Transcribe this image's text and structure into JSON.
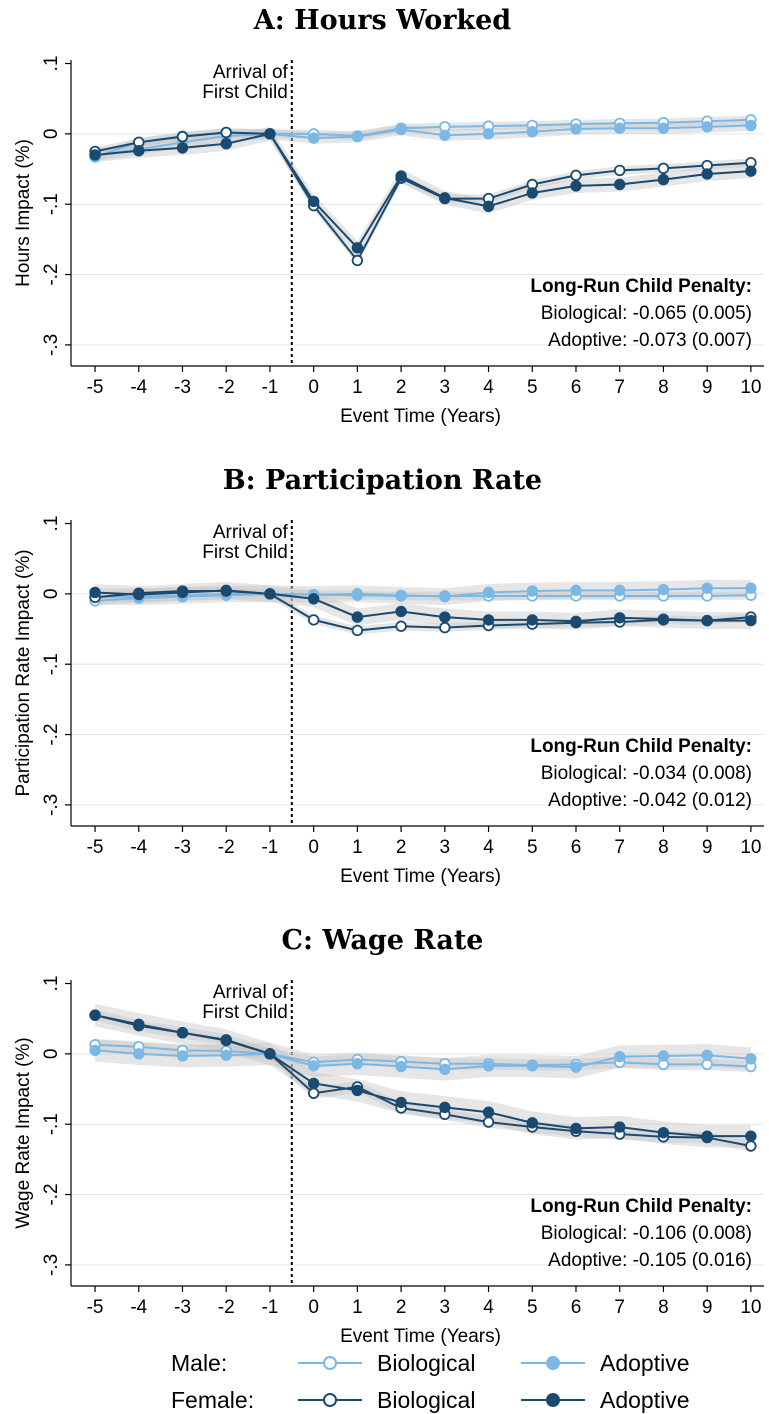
{
  "chart_data": [
    {
      "type": "line",
      "title": "A: Hours Worked",
      "xlabel": "Event Time (Years)",
      "ylabel": "Hours Impact (%)",
      "x": [
        -5,
        -4,
        -3,
        -2,
        -1,
        0,
        1,
        2,
        3,
        4,
        5,
        6,
        7,
        8,
        9,
        10
      ],
      "x_ticks": [
        "-5",
        "-4",
        "-3",
        "-2",
        "-1",
        "0",
        "1",
        "2",
        "3",
        "4",
        "5",
        "6",
        "7",
        "8",
        "9",
        "10"
      ],
      "ylim": [
        -0.3,
        0.1
      ],
      "y_ticks": [
        0.1,
        0,
        -0.1,
        -0.2,
        -0.3
      ],
      "y_tick_labels": [
        ".1",
        "0",
        "-.1",
        "-.2",
        "-.3"
      ],
      "grid": true,
      "vline": {
        "x": -0.5,
        "label_line1": "Arrival of",
        "label_line2": "First Child"
      },
      "penalty": {
        "title": "Long-Run Child Penalty:",
        "biological": "Biological: -0.065 (0.005)",
        "adoptive": "Adoptive: -0.073 (0.007)"
      },
      "series": [
        {
          "name": "Male Biological",
          "values": [
            -0.033,
            -0.012,
            -0.003,
            0.002,
            0.0,
            0.0,
            -0.003,
            0.008,
            0.01,
            0.011,
            0.012,
            0.014,
            0.015,
            0.016,
            0.018,
            0.02
          ],
          "ci": 0.006
        },
        {
          "name": "Male Adoptive",
          "values": [
            -0.031,
            -0.022,
            -0.012,
            -0.003,
            0.0,
            -0.006,
            -0.004,
            0.006,
            -0.002,
            0.0,
            0.003,
            0.007,
            0.008,
            0.008,
            0.01,
            0.012
          ],
          "ci": 0.008
        },
        {
          "name": "Female Biological",
          "values": [
            -0.025,
            -0.012,
            -0.004,
            0.002,
            0.0,
            -0.102,
            -0.18,
            -0.063,
            -0.092,
            -0.092,
            -0.072,
            -0.059,
            -0.052,
            -0.049,
            -0.045,
            -0.041
          ],
          "ci": 0.006
        },
        {
          "name": "Female Adoptive",
          "values": [
            -0.03,
            -0.024,
            -0.02,
            -0.014,
            0.0,
            -0.096,
            -0.162,
            -0.06,
            -0.091,
            -0.103,
            -0.084,
            -0.074,
            -0.072,
            -0.065,
            -0.057,
            -0.053
          ],
          "ci": 0.01
        }
      ]
    },
    {
      "type": "line",
      "title": "B: Participation Rate",
      "xlabel": "Event Time (Years)",
      "ylabel": "Participation Rate Impact (%)",
      "x": [
        -5,
        -4,
        -3,
        -2,
        -1,
        0,
        1,
        2,
        3,
        4,
        5,
        6,
        7,
        8,
        9,
        10
      ],
      "x_ticks": [
        "-5",
        "-4",
        "-3",
        "-2",
        "-1",
        "0",
        "1",
        "2",
        "3",
        "4",
        "5",
        "6",
        "7",
        "8",
        "9",
        "10"
      ],
      "ylim": [
        -0.3,
        0.1
      ],
      "y_ticks": [
        0.1,
        0,
        -0.1,
        -0.2,
        -0.3
      ],
      "y_tick_labels": [
        ".1",
        "0",
        "-.1",
        "-.2",
        "-.3"
      ],
      "grid": true,
      "vline": {
        "x": -0.5,
        "label_line1": "Arrival of",
        "label_line2": "First Child"
      },
      "penalty": {
        "title": "Long-Run Child Penalty:",
        "biological": "Biological: -0.034 (0.008)",
        "adoptive": "Adoptive: -0.042 (0.012)"
      },
      "series": [
        {
          "name": "Male Biological",
          "values": [
            -0.01,
            -0.006,
            -0.004,
            -0.002,
            0.0,
            -0.001,
            -0.002,
            -0.003,
            -0.003,
            -0.003,
            -0.003,
            -0.003,
            -0.003,
            -0.003,
            -0.003,
            -0.002
          ],
          "ci": 0.006
        },
        {
          "name": "Male Adoptive",
          "values": [
            -0.004,
            -0.004,
            -0.002,
            0.0,
            0.0,
            -0.001,
            0.0,
            -0.002,
            -0.004,
            0.002,
            0.004,
            0.005,
            0.005,
            0.006,
            0.008,
            0.008
          ],
          "ci": 0.012
        },
        {
          "name": "Female Biological",
          "values": [
            -0.005,
            0.001,
            0.004,
            0.004,
            0.0,
            -0.037,
            -0.052,
            -0.046,
            -0.048,
            -0.045,
            -0.043,
            -0.041,
            -0.04,
            -0.037,
            -0.038,
            -0.033
          ],
          "ci": 0.006
        },
        {
          "name": "Female Adoptive",
          "values": [
            0.002,
            -0.001,
            0.002,
            0.005,
            0.0,
            -0.007,
            -0.033,
            -0.025,
            -0.033,
            -0.037,
            -0.037,
            -0.039,
            -0.034,
            -0.036,
            -0.038,
            -0.038
          ],
          "ci": 0.012
        }
      ]
    },
    {
      "type": "line",
      "title": "C: Wage Rate",
      "xlabel": "Event Time (Years)",
      "ylabel": "Wage Rate Impact (%)",
      "x": [
        -5,
        -4,
        -3,
        -2,
        -1,
        0,
        1,
        2,
        3,
        4,
        5,
        6,
        7,
        8,
        9,
        10
      ],
      "x_ticks": [
        "-5",
        "-4",
        "-3",
        "-2",
        "-1",
        "0",
        "1",
        "2",
        "3",
        "4",
        "5",
        "6",
        "7",
        "8",
        "9",
        "10"
      ],
      "ylim": [
        -0.3,
        0.1
      ],
      "y_ticks": [
        0.1,
        0,
        -0.1,
        -0.2,
        -0.3
      ],
      "y_tick_labels": [
        ".1",
        "0",
        "-.1",
        "-.2",
        "-.3"
      ],
      "grid": true,
      "vline": {
        "x": -0.5,
        "label_line1": "Arrival of",
        "label_line2": "First Child"
      },
      "penalty": {
        "title": "Long-Run Child Penalty:",
        "biological": "Biological: -0.106 (0.008)",
        "adoptive": "Adoptive: -0.105 (0.016)"
      },
      "series": [
        {
          "name": "Male Biological",
          "values": [
            0.013,
            0.01,
            0.005,
            0.004,
            0.0,
            -0.012,
            -0.008,
            -0.011,
            -0.014,
            -0.014,
            -0.016,
            -0.015,
            -0.012,
            -0.015,
            -0.015,
            -0.018
          ],
          "ci": 0.008
        },
        {
          "name": "Male Adoptive",
          "values": [
            0.005,
            0.0,
            -0.003,
            -0.002,
            0.0,
            -0.017,
            -0.014,
            -0.018,
            -0.022,
            -0.017,
            -0.017,
            -0.019,
            -0.004,
            -0.003,
            -0.002,
            -0.007
          ],
          "ci": 0.016
        },
        {
          "name": "Female Biological",
          "values": [
            0.055,
            0.04,
            0.03,
            0.02,
            0.0,
            -0.056,
            -0.047,
            -0.077,
            -0.086,
            -0.097,
            -0.104,
            -0.11,
            -0.114,
            -0.118,
            -0.119,
            -0.131
          ],
          "ci": 0.008
        },
        {
          "name": "Female Adoptive",
          "values": [
            0.055,
            0.042,
            0.03,
            0.019,
            0.0,
            -0.042,
            -0.052,
            -0.069,
            -0.076,
            -0.083,
            -0.098,
            -0.106,
            -0.104,
            -0.112,
            -0.117,
            -0.117
          ],
          "ci": 0.016
        }
      ]
    }
  ],
  "legend": {
    "rows": [
      {
        "label": "Male:",
        "items": [
          "Biological",
          "Adoptive"
        ]
      },
      {
        "label": "Female:",
        "items": [
          "Biological",
          "Adoptive"
        ]
      }
    ]
  },
  "colors": {
    "male": "#7cb8e6",
    "female": "#1a4a70",
    "band": "#c8c8c8",
    "grid": "#e6e6e6"
  }
}
